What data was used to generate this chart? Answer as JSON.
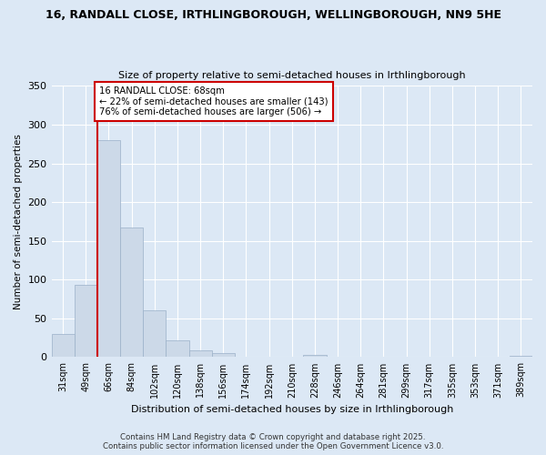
{
  "title1": "16, RANDALL CLOSE, IRTHLINGBOROUGH, WELLINGBOROUGH, NN9 5HE",
  "title2": "Size of property relative to semi-detached houses in Irthlingborough",
  "xlabel": "Distribution of semi-detached houses by size in Irthlingborough",
  "ylabel": "Number of semi-detached properties",
  "bin_labels": [
    "31sqm",
    "49sqm",
    "66sqm",
    "84sqm",
    "102sqm",
    "120sqm",
    "138sqm",
    "156sqm",
    "174sqm",
    "192sqm",
    "210sqm",
    "228sqm",
    "246sqm",
    "264sqm",
    "281sqm",
    "299sqm",
    "317sqm",
    "335sqm",
    "353sqm",
    "371sqm",
    "389sqm"
  ],
  "bin_values": [
    30,
    93,
    280,
    167,
    60,
    22,
    9,
    5,
    0,
    0,
    0,
    3,
    0,
    0,
    0,
    0,
    0,
    0,
    0,
    0,
    2
  ],
  "bar_color": "#ccd9e8",
  "bar_edgecolor": "#9ab0c8",
  "red_line_x": 2.0,
  "annotation_text": "16 RANDALL CLOSE: 68sqm\n← 22% of semi-detached houses are smaller (143)\n76% of semi-detached houses are larger (506) →",
  "annotation_box_color": "#ffffff",
  "annotation_box_edgecolor": "#cc0000",
  "red_line_color": "#cc0000",
  "ylim": [
    0,
    350
  ],
  "yticks": [
    0,
    50,
    100,
    150,
    200,
    250,
    300,
    350
  ],
  "footer1": "Contains HM Land Registry data © Crown copyright and database right 2025.",
  "footer2": "Contains public sector information licensed under the Open Government Licence v3.0.",
  "bg_color": "#dce8f5",
  "plot_bg_color": "#dce8f5",
  "grid_color": "#c0cfe0"
}
